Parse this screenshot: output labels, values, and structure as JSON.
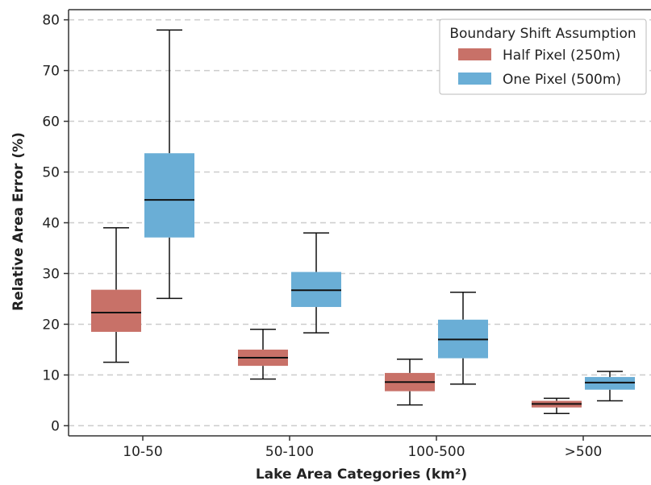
{
  "chart_data": {
    "type": "box",
    "xlabel": "Lake Area Categories (km²)",
    "ylabel": "Relative Area Error (%)",
    "ylim": [
      -2,
      82
    ],
    "yticks": [
      0,
      10,
      20,
      30,
      40,
      50,
      60,
      70,
      80
    ],
    "grid": "horizontal dashed",
    "categories": [
      "10-50",
      "50-100",
      "100-500",
      ">500"
    ],
    "legend": {
      "title": "Boundary Shift Assumption",
      "placement": "top-right"
    },
    "series": [
      {
        "name": "Half Pixel (250m)",
        "color": "#c87168",
        "boxes": [
          {
            "whisker_low": 12.5,
            "q1": 18.5,
            "median": 22.3,
            "q3": 26.8,
            "whisker_high": 39.0
          },
          {
            "whisker_low": 9.2,
            "q1": 11.8,
            "median": 13.4,
            "q3": 15.0,
            "whisker_high": 19.0
          },
          {
            "whisker_low": 4.1,
            "q1": 6.8,
            "median": 8.6,
            "q3": 10.4,
            "whisker_high": 13.1
          },
          {
            "whisker_low": 2.4,
            "q1": 3.6,
            "median": 4.3,
            "q3": 4.9,
            "whisker_high": 5.4
          }
        ]
      },
      {
        "name": "One Pixel (500m)",
        "color": "#6aaed6",
        "boxes": [
          {
            "whisker_low": 25.1,
            "q1": 37.1,
            "median": 44.5,
            "q3": 53.7,
            "whisker_high": 78.0
          },
          {
            "whisker_low": 18.3,
            "q1": 23.4,
            "median": 26.7,
            "q3": 30.3,
            "whisker_high": 38.0
          },
          {
            "whisker_low": 8.2,
            "q1": 13.3,
            "median": 17.0,
            "q3": 20.9,
            "whisker_high": 26.3
          },
          {
            "whisker_low": 4.9,
            "q1": 7.1,
            "median": 8.5,
            "q3": 9.6,
            "whisker_high": 10.7
          }
        ]
      }
    ]
  }
}
